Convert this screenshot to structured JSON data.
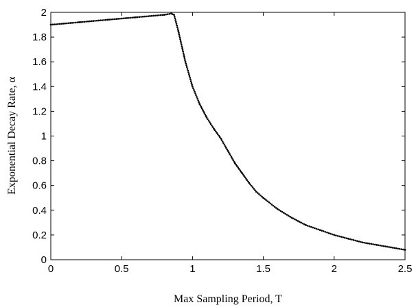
{
  "chart_data": {
    "type": "scatter",
    "title": "",
    "xlabel": "Max Sampling Period, T",
    "ylabel": "Exponential Decay Rate, α",
    "xlim": [
      0,
      2.5
    ],
    "ylim": [
      0,
      2
    ],
    "x_ticks": [
      0,
      0.5,
      1,
      1.5,
      2,
      2.5
    ],
    "x_tick_labels": [
      "0",
      "0.5",
      "1",
      "1.5",
      "2",
      "2.5"
    ],
    "y_ticks": [
      0,
      0.2,
      0.4,
      0.6,
      0.8,
      1,
      1.2,
      1.4,
      1.6,
      1.8,
      2
    ],
    "y_tick_labels": [
      "0",
      "0.2",
      "0.4",
      "0.6",
      "0.8",
      "1",
      "1.2",
      "1.4",
      "1.6",
      "1.8",
      "2"
    ],
    "grid": false,
    "marker_color": "#000000",
    "series": [
      {
        "x": [
          0,
          0.1,
          0.2,
          0.3,
          0.4,
          0.5,
          0.6,
          0.7,
          0.8,
          0.85,
          0.87,
          0.9,
          0.95,
          1.0,
          1.05,
          1.1,
          1.15,
          1.2,
          1.25,
          1.3,
          1.35,
          1.4,
          1.45,
          1.5,
          1.6,
          1.7,
          1.8,
          1.9,
          2.0,
          2.1,
          2.2,
          2.3,
          2.4,
          2.5
        ],
        "y": [
          1.9,
          1.91,
          1.92,
          1.93,
          1.94,
          1.95,
          1.96,
          1.97,
          1.98,
          1.99,
          1.98,
          1.85,
          1.6,
          1.4,
          1.26,
          1.15,
          1.06,
          0.98,
          0.88,
          0.78,
          0.7,
          0.62,
          0.55,
          0.5,
          0.41,
          0.34,
          0.28,
          0.24,
          0.2,
          0.17,
          0.14,
          0.12,
          0.1,
          0.08
        ]
      }
    ]
  }
}
